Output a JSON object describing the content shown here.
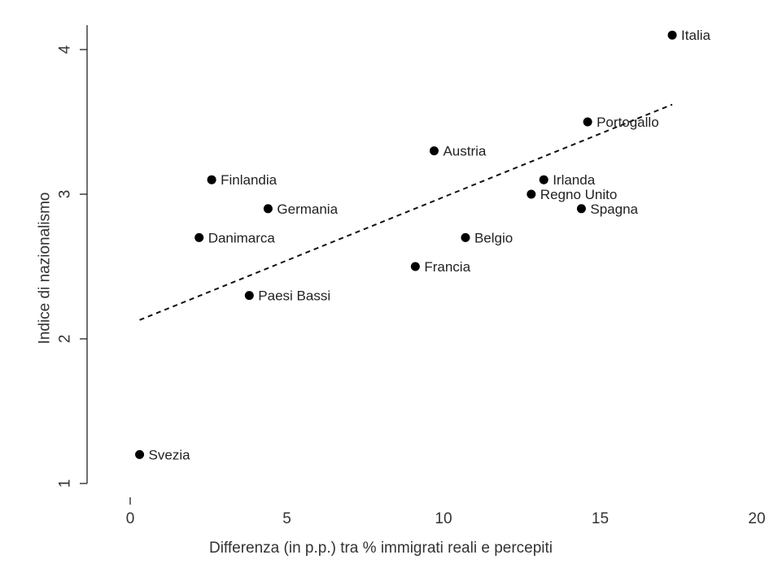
{
  "chart_data": {
    "type": "scatter",
    "title": "",
    "xlabel": "Differenza (in p.p.) tra % immigrati reali e percepiti",
    "ylabel": "Indice di nazionalismo",
    "xlim": [
      0,
      20
    ],
    "ylim": [
      1,
      4
    ],
    "xticks": [
      0,
      5,
      10,
      15,
      20
    ],
    "yticks": [
      1,
      2,
      3,
      4
    ],
    "grid": false,
    "marker_color": "#000000",
    "points": [
      {
        "label": "Italia",
        "x": 17.3,
        "y": 4.1
      },
      {
        "label": "Portogallo",
        "x": 14.6,
        "y": 3.5
      },
      {
        "label": "Austria",
        "x": 9.7,
        "y": 3.3
      },
      {
        "label": "Irlanda",
        "x": 13.2,
        "y": 3.1
      },
      {
        "label": "Finlandia",
        "x": 2.6,
        "y": 3.1
      },
      {
        "label": "Regno Unito",
        "x": 12.8,
        "y": 3.0
      },
      {
        "label": "Germania",
        "x": 4.4,
        "y": 2.9
      },
      {
        "label": "Spagna",
        "x": 14.4,
        "y": 2.9
      },
      {
        "label": "Danimarca",
        "x": 2.2,
        "y": 2.7
      },
      {
        "label": "Belgio",
        "x": 10.7,
        "y": 2.7
      },
      {
        "label": "Francia",
        "x": 9.1,
        "y": 2.5
      },
      {
        "label": "Paesi Bassi",
        "x": 3.8,
        "y": 2.3
      },
      {
        "label": "Svezia",
        "x": 0.3,
        "y": 1.2
      }
    ],
    "trendline": {
      "style": "dashed",
      "x": [
        0.3,
        17.3
      ],
      "y": [
        2.13,
        3.62
      ]
    }
  }
}
